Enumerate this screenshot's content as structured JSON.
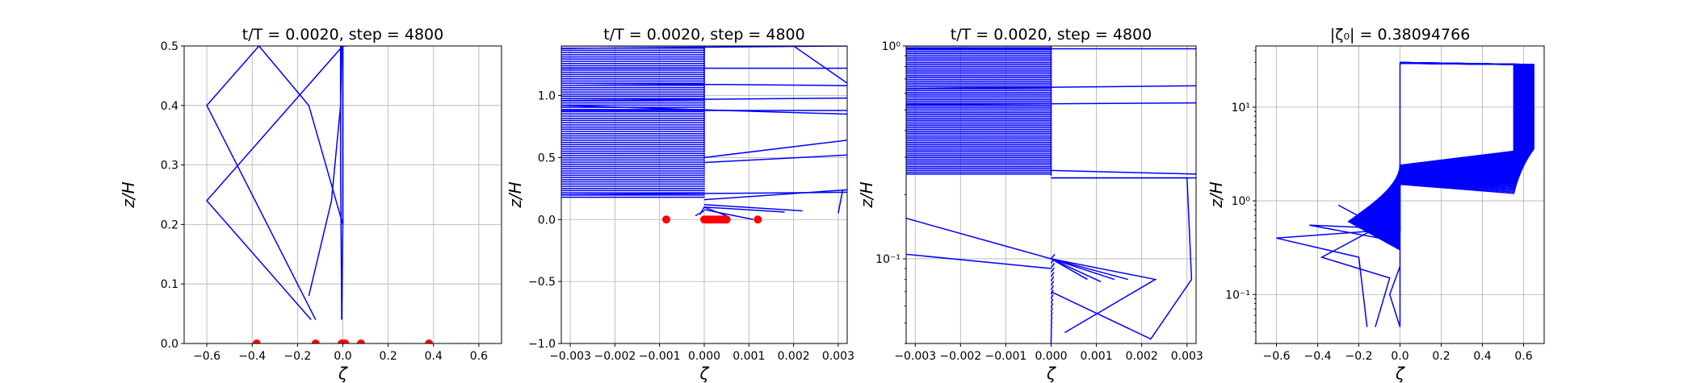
{
  "figure": {
    "width": 2100,
    "height": 475
  },
  "chart_data": [
    {
      "type": "line",
      "title": "t/T = 0.0020, step = 4800",
      "xlabel": "ζ",
      "ylabel": "z/H",
      "xlim": [
        -0.7,
        0.7
      ],
      "ylim": [
        0.0,
        0.5
      ],
      "yscale": "linear",
      "grid": true,
      "xticks": [
        -0.6,
        -0.4,
        -0.2,
        0.0,
        0.2,
        0.4,
        0.6
      ],
      "xtick_labels": [
        "−0.6",
        "−0.4",
        "−0.2",
        "0.0",
        "0.2",
        "0.4",
        "0.6"
      ],
      "yticks": [
        0.0,
        0.1,
        0.2,
        0.3,
        0.4,
        0.5
      ],
      "ytick_labels": [
        "0.0",
        "0.1",
        "0.2",
        "0.3",
        "0.4",
        "0.5"
      ],
      "line_color": "#0000ff",
      "series": [
        {
          "x": [
            -0.12,
            -0.6,
            -0.37,
            -0.15,
            0.0,
            0.0
          ],
          "y": [
            0.04,
            0.4,
            0.5,
            0.4,
            0.2,
            0.5
          ]
        },
        {
          "x": [
            -0.14,
            -0.6,
            0.0,
            0.02
          ],
          "y": [
            0.04,
            0.24,
            0.5,
            0.5
          ]
        },
        {
          "x": [
            -0.15,
            -0.05,
            -0.01,
            -0.005
          ],
          "y": [
            0.08,
            0.24,
            0.4,
            0.5
          ]
        },
        {
          "x": [
            -0.005,
            -0.01,
            -0.01,
            0.0
          ],
          "y": [
            0.04,
            0.3,
            0.5,
            0.5
          ]
        },
        {
          "x": [
            -0.005,
            0.0,
            0.0
          ],
          "y": [
            0.04,
            0.2,
            0.5
          ]
        }
      ],
      "points_color": "#ff0000",
      "points": [
        {
          "x": -0.38,
          "y": 0.0
        },
        {
          "x": -0.12,
          "y": 0.0
        },
        {
          "x": -0.005,
          "y": 0.0
        },
        {
          "x": 0.0,
          "y": 0.0
        },
        {
          "x": 0.01,
          "y": 0.0
        },
        {
          "x": 0.08,
          "y": 0.0
        },
        {
          "x": 0.38,
          "y": 0.0
        }
      ]
    },
    {
      "type": "line",
      "title": "t/T = 0.0020, step = 4800",
      "xlabel": "ζ",
      "ylabel": "z/H",
      "xlim": [
        -0.0032,
        0.0032
      ],
      "ylim": [
        -1.0,
        1.4
      ],
      "yscale": "linear",
      "grid": true,
      "xticks": [
        -0.003,
        -0.002,
        -0.001,
        0.0,
        0.001,
        0.002,
        0.003
      ],
      "xtick_labels": [
        "−0.003",
        "−0.002",
        "−0.001",
        "0.000",
        "0.001",
        "0.002",
        "0.003"
      ],
      "yticks": [
        -1.0,
        -0.5,
        0.0,
        0.5,
        1.0
      ],
      "ytick_labels": [
        "−1.0",
        "−0.5",
        "0.0",
        "0.5",
        "1.0"
      ],
      "line_color": "#0000ff",
      "fan": {
        "x_left": -0.0032,
        "x_right": 0.0,
        "y_min": 0.18,
        "y_max": 1.4,
        "count": 70
      },
      "series": [
        {
          "x": [
            -0.0032,
            0.0032
          ],
          "y": [
            1.38,
            1.4
          ]
        },
        {
          "x": [
            -0.0032,
            0.0032
          ],
          "y": [
            1.22,
            1.22
          ]
        },
        {
          "x": [
            -0.0032,
            0.0032
          ],
          "y": [
            1.1,
            1.08
          ]
        },
        {
          "x": [
            -0.0032,
            0.0032
          ],
          "y": [
            0.96,
            0.98
          ]
        },
        {
          "x": [
            -0.0032,
            0.0032
          ],
          "y": [
            0.92,
            0.85
          ]
        },
        {
          "x": [
            -0.0032,
            0.0032
          ],
          "y": [
            0.88,
            0.88
          ]
        },
        {
          "x": [
            0.0,
            0.0032
          ],
          "y": [
            0.5,
            0.64
          ]
        },
        {
          "x": [
            0.0,
            0.0032
          ],
          "y": [
            0.46,
            0.52
          ]
        },
        {
          "x": [
            -0.0032,
            0.0032
          ],
          "y": [
            0.2,
            0.22
          ]
        },
        {
          "x": [
            0.0,
            0.0032
          ],
          "y": [
            0.16,
            0.24
          ]
        },
        {
          "x": [
            0.002,
            0.0032
          ],
          "y": [
            1.4,
            1.1
          ]
        },
        {
          "x": [
            0.0031,
            0.003
          ],
          "y": [
            0.24,
            0.05
          ]
        },
        {
          "x": [
            0.0,
            0.0022
          ],
          "y": [
            0.12,
            0.07
          ]
        },
        {
          "x": [
            0.0,
            0.0018
          ],
          "y": [
            0.1,
            0.06
          ]
        },
        {
          "x": [
            0.0,
            0.0011
          ],
          "y": [
            0.08,
            0.0
          ]
        },
        {
          "x": [
            -0.0001,
            0.0,
            0.0005
          ],
          "y": [
            0.04,
            0.1,
            0.03
          ]
        },
        {
          "x": [
            -0.0002,
            0.0
          ],
          "y": [
            0.03,
            0.07
          ]
        }
      ],
      "points_color": "#ff0000",
      "points": [
        {
          "x": -0.00085,
          "y": 0.0
        },
        {
          "x": 0.0,
          "y": 0.0
        },
        {
          "x": 5e-05,
          "y": 0.0
        },
        {
          "x": 0.0001,
          "y": 0.0
        },
        {
          "x": 0.00015,
          "y": 0.0
        },
        {
          "x": 0.0002,
          "y": 0.0
        },
        {
          "x": 0.00025,
          "y": 0.0
        },
        {
          "x": 0.0003,
          "y": 0.0
        },
        {
          "x": 0.00035,
          "y": 0.0
        },
        {
          "x": 0.0004,
          "y": 0.0
        },
        {
          "x": 0.00045,
          "y": 0.0
        },
        {
          "x": 0.0005,
          "y": 0.0
        },
        {
          "x": 0.0012,
          "y": 0.0
        }
      ]
    },
    {
      "type": "line",
      "title": "t/T = 0.0020, step = 4800",
      "xlabel": "ζ",
      "ylabel": "z/H",
      "xlim": [
        -0.0032,
        0.0032
      ],
      "ylim": [
        0.04,
        1.0
      ],
      "yscale": "log",
      "grid": true,
      "xticks": [
        -0.003,
        -0.002,
        -0.001,
        0.0,
        0.001,
        0.002,
        0.003
      ],
      "xtick_labels": [
        "−0.003",
        "−0.002",
        "−0.001",
        "0.000",
        "0.001",
        "0.002",
        "0.003"
      ],
      "yticks": [
        0.1,
        1.0
      ],
      "ytick_labels": [
        "10⁻¹",
        "10⁰"
      ],
      "line_color": "#0000ff",
      "fan": {
        "x_left": -0.0032,
        "x_right": 0.0,
        "y_min": 0.25,
        "y_max": 1.0,
        "count": 70
      },
      "fan_low": {
        "x_left": 0.0,
        "x_right": 0.0,
        "y_min": 0.04,
        "y_max": 0.1,
        "count": 20
      },
      "series": [
        {
          "x": [
            -0.0032,
            0.0032
          ],
          "y": [
            0.97,
            0.97
          ]
        },
        {
          "x": [
            0.0032,
            0.0032
          ],
          "y": [
            0.9,
            0.92
          ]
        },
        {
          "x": [
            -0.0032,
            0.0032
          ],
          "y": [
            0.63,
            0.65
          ]
        },
        {
          "x": [
            -0.0032,
            0.0032
          ],
          "y": [
            0.53,
            0.54
          ]
        },
        {
          "x": [
            0.0,
            0.0032
          ],
          "y": [
            0.26,
            0.25
          ]
        },
        {
          "x": [
            0.0,
            0.0032
          ],
          "y": [
            0.24,
            0.24
          ]
        },
        {
          "x": [
            -0.0032,
            0.0,
            0.0023,
            0.0003
          ],
          "y": [
            0.155,
            0.1,
            0.08,
            0.045
          ]
        },
        {
          "x": [
            0.0,
            0.003,
            0.0031
          ],
          "y": [
            0.24,
            0.24,
            0.08
          ]
        },
        {
          "x": [
            0.0031,
            0.0022,
            0.0
          ],
          "y": [
            0.08,
            0.042,
            0.07
          ]
        },
        {
          "x": [
            -0.0032,
            0.0
          ],
          "y": [
            0.105,
            0.09
          ]
        },
        {
          "x": [
            0.0,
            0.0017
          ],
          "y": [
            0.1,
            0.08
          ]
        },
        {
          "x": [
            0.0,
            0.0014
          ],
          "y": [
            0.1,
            0.08
          ]
        },
        {
          "x": [
            0.0,
            0.0011
          ],
          "y": [
            0.1,
            0.078
          ]
        },
        {
          "x": [
            0.0,
            0.0008
          ],
          "y": [
            0.1,
            0.08
          ]
        }
      ],
      "points": []
    },
    {
      "type": "line",
      "title": "|ζ₀| = 0.38094766",
      "xlabel": "ζ",
      "ylabel": "z/H",
      "xlim": [
        -0.7,
        0.7
      ],
      "ylim": [
        0.03,
        45
      ],
      "yscale": "log",
      "grid": true,
      "xticks": [
        -0.6,
        -0.4,
        -0.2,
        0.0,
        0.2,
        0.4,
        0.6
      ],
      "xtick_labels": [
        "−0.6",
        "−0.4",
        "−0.2",
        "0.0",
        "0.2",
        "0.4",
        "0.6"
      ],
      "yticks": [
        0.1,
        1.0,
        10.0
      ],
      "ytick_labels": [
        "10⁻¹",
        "10⁰",
        "10¹"
      ],
      "line_color": "#0000ff",
      "profiles": {
        "count": 60,
        "x_min": 0.0,
        "x_max": 0.65,
        "y_top": 30,
        "y_knee": 3
      },
      "series": [
        {
          "x": [
            0.0,
            -0.6,
            -0.2,
            -0.16
          ],
          "y": [
            0.5,
            0.4,
            0.25,
            0.045
          ]
        },
        {
          "x": [
            0.0,
            -0.38,
            -0.05,
            -0.12
          ],
          "y": [
            0.7,
            0.25,
            0.15,
            0.045
          ]
        },
        {
          "x": [
            0.0,
            -0.44,
            -0.1
          ],
          "y": [
            0.5,
            0.55,
            0.4
          ]
        },
        {
          "x": [
            -0.3,
            -0.15,
            0.0
          ],
          "y": [
            0.9,
            0.6,
            0.3
          ]
        },
        {
          "x": [
            0.0,
            -0.05,
            0.0
          ],
          "y": [
            0.2,
            0.1,
            0.045
          ]
        }
      ],
      "points": []
    }
  ]
}
